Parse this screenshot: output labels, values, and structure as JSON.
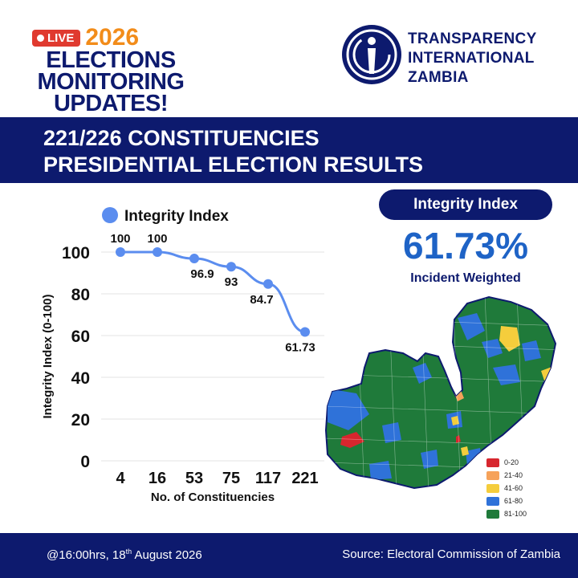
{
  "header": {
    "live_label": "LIVE",
    "year": "2026",
    "headline_lines": [
      "ELECTIONS",
      "MONITORING",
      "UPDATES!"
    ],
    "org_name_lines": [
      "TRANSPARENCY",
      "INTERNATIONAL",
      "ZAMBIA"
    ]
  },
  "banner": {
    "line1": "221/226 CONSTITUENCIES",
    "line2": "PRESIDENTIAL ELECTION RESULTS"
  },
  "kpi": {
    "label": "Integrity Index",
    "value": "61.73%",
    "sublabel": "Incident Weighted"
  },
  "map_legend": [
    {
      "label": "0-20",
      "color": "#d7262e"
    },
    {
      "label": "21-40",
      "color": "#f6a25a"
    },
    {
      "label": "41-60",
      "color": "#f5cd3c"
    },
    {
      "label": "61-80",
      "color": "#2f72d9"
    },
    {
      "label": "81-100",
      "color": "#1f7a3a"
    }
  ],
  "footer": {
    "time_prefix": "@16:00hrs, 18",
    "time_sup": "th",
    "time_suffix": " August 2026",
    "source": "Source: Electoral Commission of Zambia"
  },
  "chart_data": {
    "type": "line",
    "title": "",
    "legend": "Integrity Index",
    "legend_position": "top",
    "xlabel": "No. of Constituencies",
    "ylabel": "Integrity Index (0-100)",
    "categories": [
      "4",
      "16",
      "53",
      "75",
      "117",
      "221"
    ],
    "series": [
      {
        "name": "Integrity Index",
        "values": [
          100,
          100,
          96.9,
          93,
          84.7,
          61.73
        ],
        "color": "#5b8def"
      }
    ],
    "data_labels": [
      "100",
      "100",
      "96.9",
      "93",
      "84.7",
      "61.73"
    ],
    "yticks": [
      0,
      20,
      40,
      60,
      80,
      100
    ],
    "ylim": [
      0,
      100
    ],
    "grid": true
  }
}
